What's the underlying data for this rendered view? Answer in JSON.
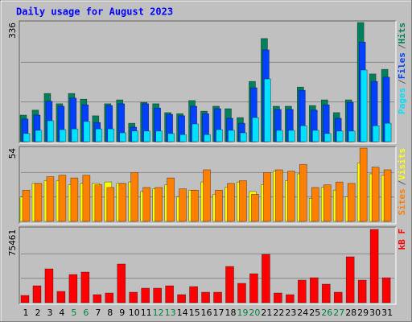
{
  "chart_data": [
    {
      "type": "bar",
      "title": "Daily usage for August 2023",
      "categories": [
        "1",
        "2",
        "3",
        "4",
        "5",
        "6",
        "7",
        "8",
        "9",
        "10",
        "11",
        "12",
        "13",
        "14",
        "15",
        "16",
        "17",
        "18",
        "19",
        "20",
        "21",
        "22",
        "23",
        "24",
        "25",
        "26",
        "27",
        "28",
        "29",
        "30",
        "31"
      ],
      "category_colors": [
        "#000000",
        "#000000",
        "#000000",
        "#000000",
        "#008040",
        "#008040",
        "#000000",
        "#000000",
        "#000000",
        "#000000",
        "#000000",
        "#008040",
        "#008040",
        "#000000",
        "#000000",
        "#000000",
        "#000000",
        "#000000",
        "#008040",
        "#008040",
        "#000000",
        "#000000",
        "#000000",
        "#000000",
        "#000000",
        "#008040",
        "#008040",
        "#000000",
        "#000000",
        "#000000",
        "#000000"
      ],
      "legend_separator": "/",
      "ylim": [
        0,
        336
      ],
      "yticks": [
        336
      ],
      "series": [
        {
          "name": "Hits",
          "color": "#00805c",
          "values": [
            75,
            89,
            136,
            107,
            136,
            120,
            73,
            107,
            118,
            52,
            111,
            107,
            82,
            79,
            116,
            86,
            100,
            93,
            68,
            170,
            291,
            100,
            100,
            154,
            102,
            118,
            82,
            118,
            336,
            191,
            204
          ]
        },
        {
          "name": "Files",
          "color": "#0040ff",
          "values": [
            64,
            75,
            114,
            100,
            123,
            104,
            54,
            102,
            107,
            41,
            107,
            95,
            77,
            73,
            100,
            79,
            93,
            66,
            52,
            152,
            259,
            91,
            91,
            145,
            89,
            104,
            66,
            111,
            281,
            170,
            182
          ]
        },
        {
          "name": "Pages",
          "color": "#00e0ff",
          "values": [
            23,
            32,
            59,
            34,
            36,
            57,
            36,
            36,
            25,
            30,
            30,
            30,
            23,
            20,
            50,
            20,
            34,
            32,
            25,
            68,
            177,
            32,
            32,
            45,
            32,
            23,
            30,
            30,
            202,
            45,
            52
          ]
        }
      ]
    },
    {
      "type": "bar",
      "legend_separator": "/",
      "ylim": [
        0,
        54
      ],
      "yticks": [
        54
      ],
      "series": [
        {
          "name": "Visits",
          "color": "#ffff00",
          "values": [
            18,
            28,
            30,
            30,
            27,
            28,
            28,
            29,
            28,
            29,
            22,
            24,
            27,
            18,
            23,
            29,
            20,
            25,
            29,
            22,
            27,
            37,
            30,
            35,
            17,
            25,
            23,
            18,
            43,
            35,
            34
          ]
        },
        {
          "name": "Sites",
          "color": "#ff8000",
          "values": [
            23,
            28,
            33,
            34,
            32,
            34,
            27,
            25,
            28,
            36,
            25,
            25,
            32,
            24,
            23,
            38,
            23,
            28,
            30,
            20,
            36,
            38,
            37,
            42,
            25,
            27,
            29,
            28,
            54,
            40,
            38
          ]
        }
      ]
    },
    {
      "type": "bar",
      "ylim": [
        0,
        75461
      ],
      "yticks": [
        75461
      ],
      "series": [
        {
          "name": "kB F",
          "color": "#ff0000",
          "values": [
            7464,
            17416,
            34830,
            11610,
            29025,
            31513,
            8293,
            9952,
            39805,
            10781,
            14927,
            14927,
            17416,
            8293,
            16586,
            10781,
            10781,
            37317,
            19903,
            29854,
            49757,
            9952,
            8293,
            23220,
            25708,
            19074,
            10781,
            47269,
            23220,
            75461,
            25708
          ]
        }
      ]
    }
  ]
}
